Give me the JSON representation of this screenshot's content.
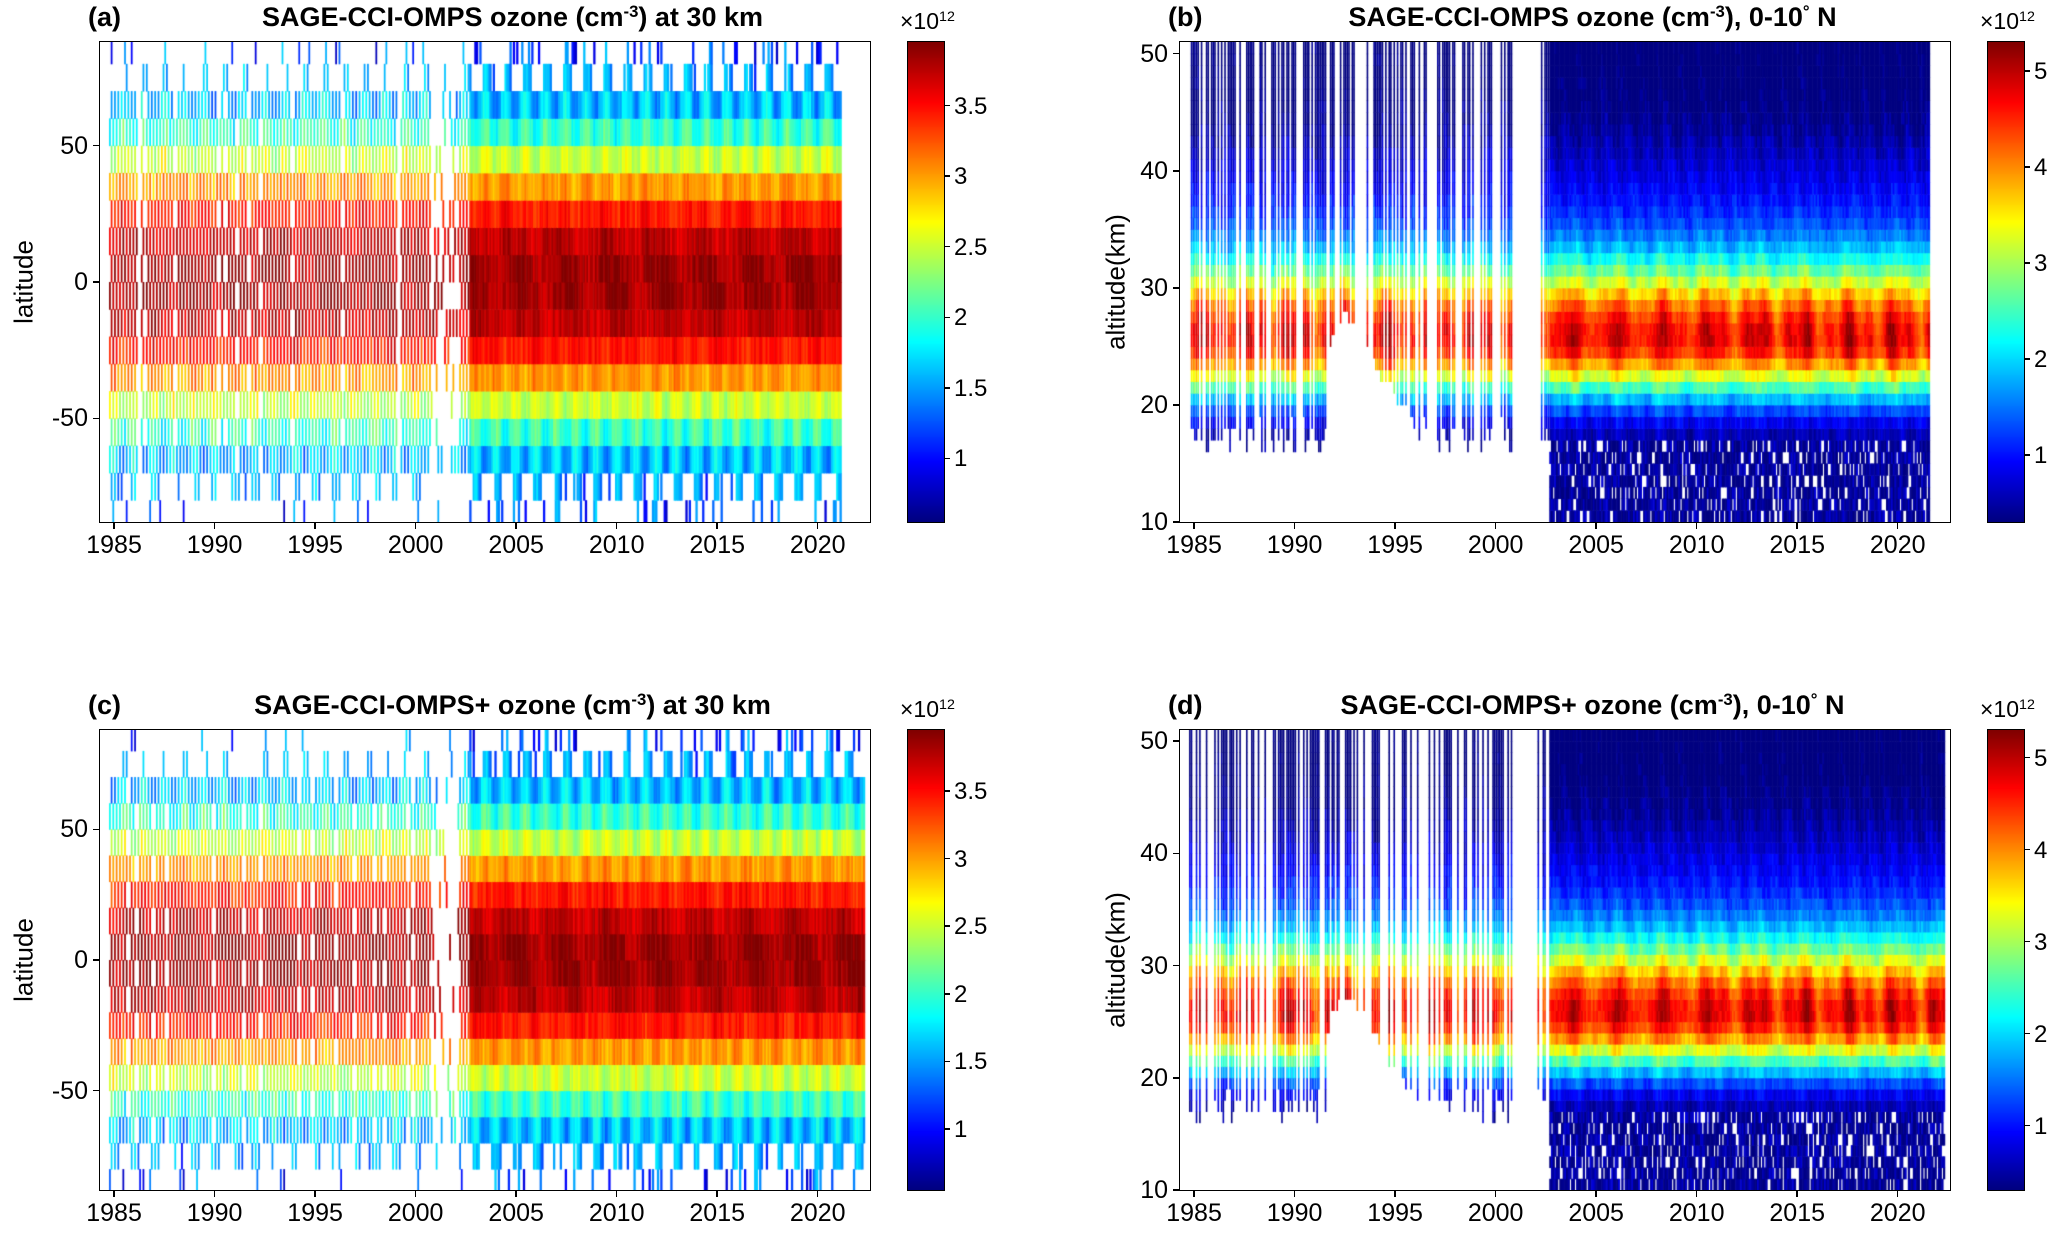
{
  "figure": {
    "background": "#ffffff",
    "colormap": "jet",
    "text_color": "#000000"
  },
  "chart_data": {
    "type": "heatmap",
    "colormap": "jet",
    "units": "cm-3 (number density), values scaled by 1e12",
    "x_axis": "year",
    "description": "Four-panel MATLAB-style figure of SAGE-CCI-OMPS merged satellite ozone. Left panels: latitude-time sections of ozone number density at 30 km. Right panels: altitude-time sections averaged over 0-10 N. Top row: SAGE-CCI-OMPS; bottom row: SAGE-CCI-OMPS+. Sparse striped occultation sampling before ~2002, a data gap around 2001, a Pinatubo-related white wedge below ~28 km during 1991-1996 in the altitude panels, and dense continuous sampling after 2002.",
    "panels": [
      {
        "label": "(a)",
        "title_segments": [
          {
            "t": "SAGE-CCI-OMPS ozone (cm"
          },
          {
            "t": "-3",
            "sup": true
          },
          {
            "t": ") at 30 km"
          }
        ],
        "kind": "lat-time",
        "ylabel": "latitude",
        "x_range": [
          1984.3,
          2022.6
        ],
        "x_ticks": [
          1985,
          1990,
          1995,
          2000,
          2005,
          2010,
          2015,
          2020
        ],
        "y_range": [
          -88,
          88
        ],
        "y_ticks": [
          50,
          0,
          -50
        ],
        "clim": [
          0.55,
          3.95
        ],
        "colorbar_ticks": [
          1,
          1.5,
          2,
          2.5,
          3,
          3.5
        ],
        "colorbar_exponent": [
          {
            "t": "×10"
          },
          {
            "t": "12",
            "sup": true
          }
        ],
        "data_start": 1984.75,
        "data_end": 2021.15,
        "sparse_until": 2002.6,
        "gap": [
          2000.7,
          2002.1
        ],
        "model": {
          "bg": 1.15,
          "amp": 2.7,
          "scale": 52,
          "pow": 2.5
        },
        "seed": 1,
        "representative_values_x1e12_cm3": {
          "equator": 3.8,
          "lat_45": 2.5,
          "lat_60": 1.8,
          "lat_80": 1.3
        }
      },
      {
        "label": "(b)",
        "title_segments": [
          {
            "t": "SAGE-CCI-OMPS ozone (cm"
          },
          {
            "t": "-3",
            "sup": true
          },
          {
            "t": "),  0-10"
          },
          {
            "t": "°",
            "sup": true
          },
          {
            "t": " N"
          }
        ],
        "kind": "alt-time",
        "ylabel": "altitude(km)",
        "x_range": [
          1984.3,
          2022.6
        ],
        "x_ticks": [
          1985,
          1990,
          1995,
          2000,
          2005,
          2010,
          2015,
          2020
        ],
        "y_range": [
          10,
          51
        ],
        "y_ticks": [
          10,
          20,
          30,
          40,
          50
        ],
        "clim": [
          0.3,
          5.3
        ],
        "colorbar_ticks": [
          1,
          2,
          3,
          4,
          5
        ],
        "colorbar_exponent": [
          {
            "t": "×10"
          },
          {
            "t": "12",
            "sup": true
          }
        ],
        "data_start": 1984.75,
        "data_end": 2021.6,
        "sparse_until": 2002.6,
        "gap": [
          2000.75,
          2002.3
        ],
        "pinatubo": [
          1991.5,
          1996.3
        ],
        "model": {
          "bg": 0.18,
          "amp": 4.55,
          "zpeak": 25.8,
          "sig_up": 7.0,
          "sig_dn": 5.3,
          "shoulder_amp": 0.55,
          "shoulder_z": 38,
          "shoulder_sig": 6
        },
        "seed": 2,
        "representative_values_x1e12_cm3": {
          "peak_altitude_km": 26,
          "peak": 4.8,
          "alt_30km": 3.4,
          "alt_35km": 1.5,
          "alt_40km": 0.8,
          "below_17km": 0.4
        }
      },
      {
        "label": "(c)",
        "title_segments": [
          {
            "t": "SAGE-CCI-OMPS+ ozone (cm"
          },
          {
            "t": "-3",
            "sup": true
          },
          {
            "t": ") at 30 km"
          }
        ],
        "kind": "lat-time",
        "ylabel": "latitude",
        "x_range": [
          1984.3,
          2022.6
        ],
        "x_ticks": [
          1985,
          1990,
          1995,
          2000,
          2005,
          2010,
          2015,
          2020
        ],
        "y_range": [
          -88,
          88
        ],
        "y_ticks": [
          50,
          0,
          -50
        ],
        "clim": [
          0.55,
          3.95
        ],
        "colorbar_ticks": [
          1,
          1.5,
          2,
          2.5,
          3,
          3.5
        ],
        "colorbar_exponent": [
          {
            "t": "×10"
          },
          {
            "t": "12",
            "sup": true
          }
        ],
        "data_start": 1984.75,
        "data_end": 2022.35,
        "sparse_until": 2002.6,
        "gap": [
          2000.7,
          2002.1
        ],
        "model": {
          "bg": 1.15,
          "amp": 2.7,
          "scale": 52,
          "pow": 2.5
        },
        "seed": 3,
        "representative_values_x1e12_cm3": {
          "equator": 3.8,
          "lat_45": 2.5,
          "lat_60": 1.8,
          "lat_80": 1.3
        }
      },
      {
        "label": "(d)",
        "title_segments": [
          {
            "t": "SAGE-CCI-OMPS+ ozone (cm"
          },
          {
            "t": "-3",
            "sup": true
          },
          {
            "t": "),  0-10"
          },
          {
            "t": "°",
            "sup": true
          },
          {
            "t": " N"
          }
        ],
        "kind": "alt-time",
        "ylabel": "altitude(km)",
        "x_range": [
          1984.3,
          2022.6
        ],
        "x_ticks": [
          1985,
          1990,
          1995,
          2000,
          2005,
          2010,
          2015,
          2020
        ],
        "y_range": [
          10,
          51
        ],
        "y_ticks": [
          10,
          20,
          30,
          40,
          50
        ],
        "clim": [
          0.3,
          5.3
        ],
        "colorbar_ticks": [
          1,
          2,
          3,
          4,
          5
        ],
        "colorbar_exponent": [
          {
            "t": "×10"
          },
          {
            "t": "12",
            "sup": true
          }
        ],
        "data_start": 1984.75,
        "data_end": 2022.35,
        "sparse_until": 2002.6,
        "gap": [
          2000.75,
          2002.3
        ],
        "pinatubo": [
          1991.5,
          1996.3
        ],
        "model": {
          "bg": 0.18,
          "amp": 4.55,
          "zpeak": 25.8,
          "sig_up": 7.0,
          "sig_dn": 5.3,
          "shoulder_amp": 0.55,
          "shoulder_z": 38,
          "shoulder_sig": 6
        },
        "seed": 4,
        "representative_values_x1e12_cm3": {
          "peak_altitude_km": 26,
          "peak": 4.8,
          "alt_30km": 3.4,
          "alt_35km": 1.5,
          "alt_40km": 0.8,
          "below_17km": 0.4
        }
      }
    ]
  }
}
